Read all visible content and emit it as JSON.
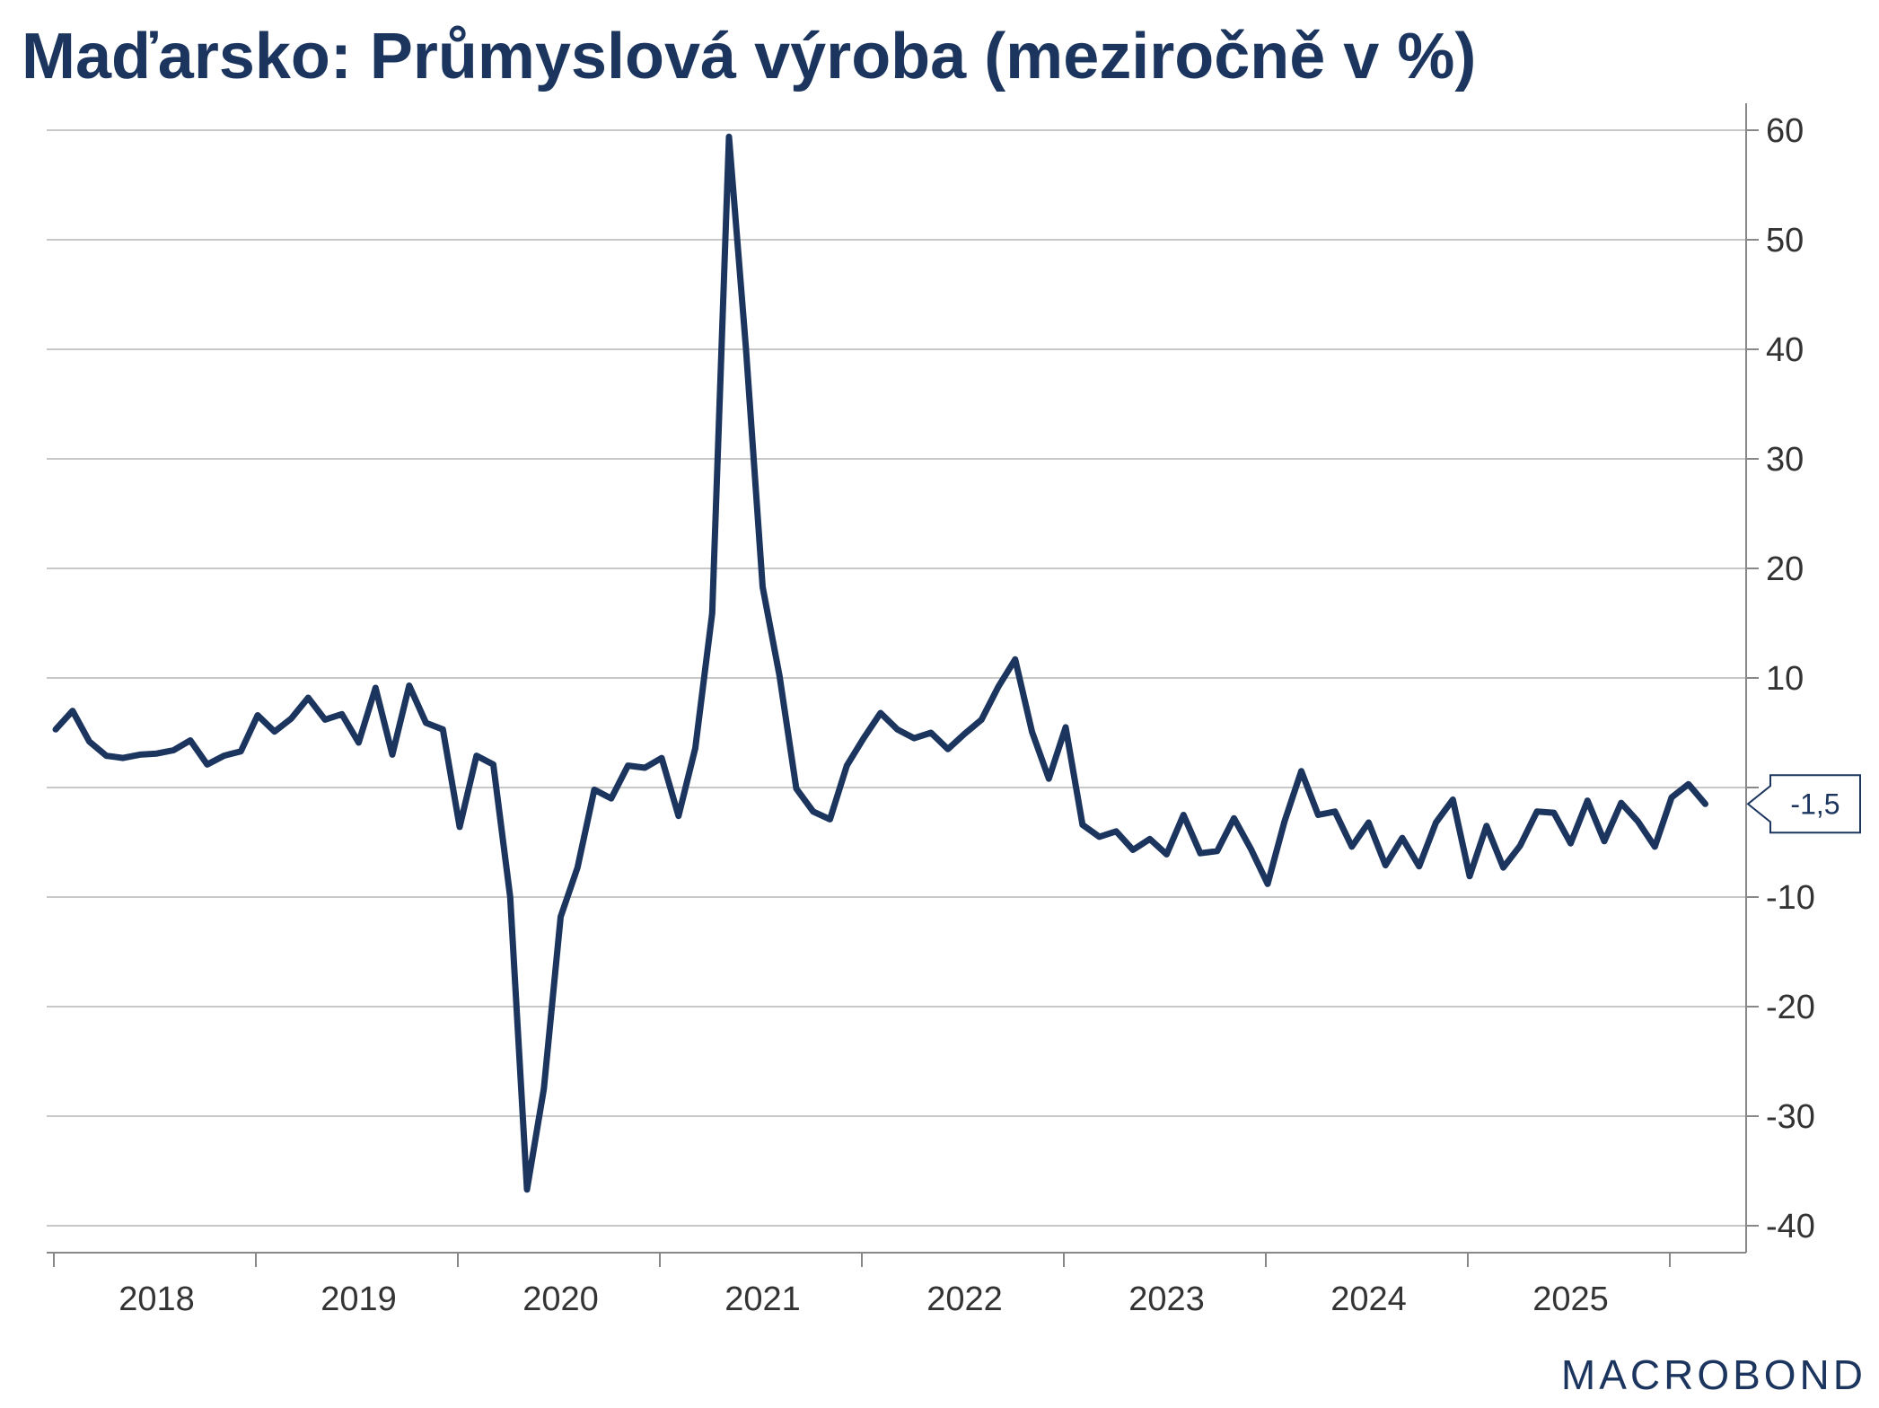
{
  "title": "Maďarsko: Průmyslová výroba (meziročně v %)",
  "brand": "MACROBOND",
  "colors": {
    "line": "#1c355e",
    "grid": "#c8c8c8",
    "axis": "#888888"
  },
  "chart_data": {
    "type": "line",
    "title": "Maďarsko: Průmyslová výroba (meziročně v %)",
    "xlabel": "",
    "ylabel": "",
    "ylim": [
      -42,
      62
    ],
    "y_ticks": [
      60,
      50,
      40,
      30,
      20,
      10,
      0,
      -10,
      -20,
      -30,
      -40
    ],
    "y_tick_labels": [
      "60",
      "50",
      "40",
      "30",
      "20",
      "10",
      "",
      "-10",
      "-20",
      "-30",
      "-40"
    ],
    "y_axis_side": "right",
    "grid": true,
    "x_tick_labels": [
      "2018",
      "2019",
      "2020",
      "2021",
      "2022",
      "2023",
      "2024",
      "2025"
    ],
    "last_value_label": "-1,5",
    "series": [
      {
        "start": "2018-01",
        "values": [
          5.3,
          7.0,
          4.2,
          2.9,
          2.7,
          3.0,
          3.1,
          3.4,
          4.3,
          2.1,
          2.9,
          3.3,
          6.6,
          5.1,
          6.3,
          8.2,
          6.2,
          6.7,
          4.1,
          9.1,
          3.0,
          9.3,
          5.9,
          5.3,
          -3.6,
          2.9,
          2.1,
          -10.0,
          -36.7,
          -27.5,
          -11.8,
          -7.3,
          -0.2,
          -1.0,
          2.0,
          1.8,
          2.7,
          -2.6,
          3.6,
          15.9,
          59.4,
          40.2,
          18.3,
          10.2,
          -0.1,
          -2.2,
          -2.9,
          2.0,
          4.5,
          6.8,
          5.3,
          4.5,
          5.0,
          3.5,
          4.9,
          6.2,
          9.2,
          11.7,
          5.1,
          0.8,
          5.5,
          -3.4,
          -4.5,
          -4.0,
          -5.7,
          -4.7,
          -6.1,
          -2.5,
          -6.0,
          -5.8,
          -2.8,
          -5.6,
          -8.8,
          -3.1,
          1.5,
          -2.5,
          -2.2,
          -5.4,
          -3.2,
          -7.1,
          -4.6,
          -7.2,
          -3.2,
          -1.1,
          -8.1,
          -3.5,
          -7.3,
          -5.3,
          -2.2,
          -2.3,
          -5.1,
          -1.2,
          -4.9,
          -1.4,
          -3.1,
          -5.4,
          -0.9,
          0.3,
          -1.5
        ]
      }
    ]
  }
}
